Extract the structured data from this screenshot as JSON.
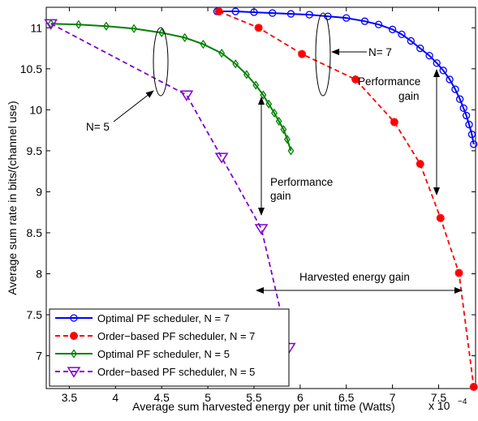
{
  "chart_data": {
    "type": "line",
    "xlabel": "Average sum harvested energy per unit time (Watts)",
    "ylabel": "Average sum rate in bits/(channel use)",
    "x_multiplier": "x 10",
    "x_exponent": "−4",
    "xlim": [
      3.25,
      7.9
    ],
    "ylim": [
      6.6,
      11.25
    ],
    "xticks": [
      3.5,
      4,
      4.5,
      5,
      5.5,
      6,
      6.5,
      7,
      7.5
    ],
    "yticks": [
      7,
      7.5,
      8,
      8.5,
      9,
      9.5,
      10,
      10.5,
      11
    ],
    "grid": false,
    "legend_position": "bottom-left",
    "series": [
      {
        "name": "Optimal PF scheduler, N = 7",
        "color": "#0000ff",
        "line_style": "solid",
        "marker": "circle",
        "marker_every": 1,
        "x": [
          5.1,
          5.3,
          5.5,
          5.7,
          5.9,
          6.1,
          6.3,
          6.5,
          6.7,
          6.85,
          7.0,
          7.1,
          7.2,
          7.3,
          7.4,
          7.48,
          7.55,
          7.62,
          7.68,
          7.73,
          7.77,
          7.8,
          7.83,
          7.86,
          7.88
        ],
        "values": [
          11.2,
          11.2,
          11.19,
          11.18,
          11.17,
          11.16,
          11.14,
          11.12,
          11.08,
          11.04,
          10.98,
          10.92,
          10.84,
          10.75,
          10.66,
          10.57,
          10.48,
          10.37,
          10.25,
          10.13,
          10.02,
          9.93,
          9.82,
          9.7,
          9.58
        ]
      },
      {
        "name": "Order−based PF scheduler, N = 7",
        "color": "#ff0000",
        "line_style": "dashed",
        "marker": "asterisk",
        "marker_every": 1,
        "x": [
          5.12,
          5.55,
          6.02,
          6.6,
          7.02,
          7.3,
          7.52,
          7.72,
          7.88
        ],
        "values": [
          11.2,
          11.0,
          10.68,
          10.37,
          9.85,
          9.34,
          8.68,
          8.01,
          6.62
        ]
      },
      {
        "name": "Optimal PF scheduler, N = 5",
        "color": "#008000",
        "line_style": "solid",
        "marker": "diamond",
        "marker_every": 1,
        "x": [
          3.3,
          3.6,
          3.9,
          4.2,
          4.5,
          4.75,
          4.95,
          5.15,
          5.3,
          5.42,
          5.52,
          5.6,
          5.66,
          5.72,
          5.77,
          5.82,
          5.86,
          5.9
        ],
        "values": [
          11.05,
          11.04,
          11.02,
          10.99,
          10.94,
          10.88,
          10.8,
          10.69,
          10.56,
          10.43,
          10.3,
          10.18,
          10.07,
          9.96,
          9.86,
          9.76,
          9.64,
          9.5
        ]
      },
      {
        "name": "Order−based PF scheduler,  N = 5",
        "color": "#8000d0",
        "line_style": "dashed",
        "marker": "triangle-down",
        "marker_every": 1,
        "x": [
          3.3,
          4.77,
          5.15,
          5.58,
          5.88
        ],
        "values": [
          11.05,
          10.18,
          9.42,
          8.55,
          7.1
        ]
      }
    ],
    "annotations": {
      "n7_label": "N= 7",
      "n5_label": "N= 5",
      "perf_gain_right_1": "Performance",
      "perf_gain_right_2": "gain",
      "perf_gain_mid_1": "Performance",
      "perf_gain_mid_2": "gain",
      "harvest_gain": "Harvested energy gain"
    }
  }
}
